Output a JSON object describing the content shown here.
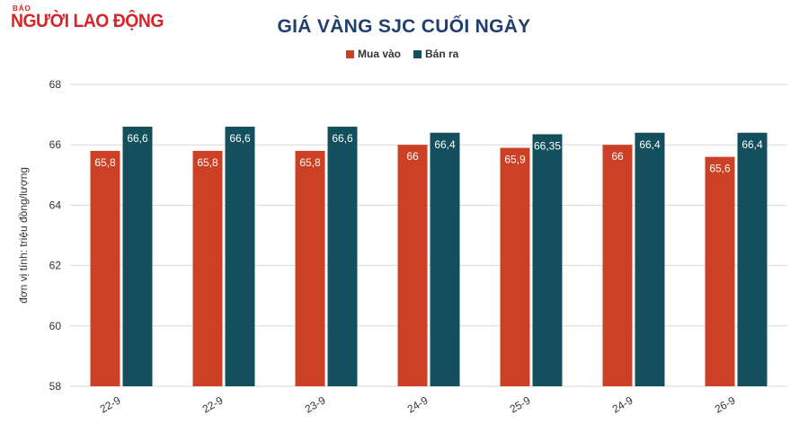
{
  "logo": {
    "small": "BÁO",
    "big": "NGƯỜI LAO ĐỘNG"
  },
  "chart_data": {
    "type": "bar",
    "title": "GIÁ VÀNG SJC CUỐI NGÀY",
    "ylabel": "đơn vị tính: triệu đồng/lượng",
    "xlabel": "",
    "ylim": [
      58,
      68
    ],
    "yticks": [
      "58",
      "60",
      "62",
      "64",
      "66",
      "68"
    ],
    "grid": true,
    "legend": "top-center",
    "categories": [
      "22-9",
      "22-9",
      "23-9",
      "24-9",
      "25-9",
      "24-9",
      "26-9"
    ],
    "series": [
      {
        "name": "Mua vào",
        "color": "#cc4125",
        "values": [
          65.8,
          65.8,
          65.8,
          66,
          65.9,
          66,
          65.6
        ],
        "labels": [
          "65,8",
          "65,8",
          "65,8",
          "66",
          "65,9",
          "66",
          "65,6"
        ]
      },
      {
        "name": "Bán ra",
        "color": "#134f5c",
        "values": [
          66.6,
          66.6,
          66.6,
          66.4,
          66.35,
          66.4,
          66.4
        ],
        "labels": [
          "66,6",
          "66,6",
          "66,6",
          "66,4",
          "66,35",
          "66,4",
          "66,4"
        ]
      }
    ]
  }
}
